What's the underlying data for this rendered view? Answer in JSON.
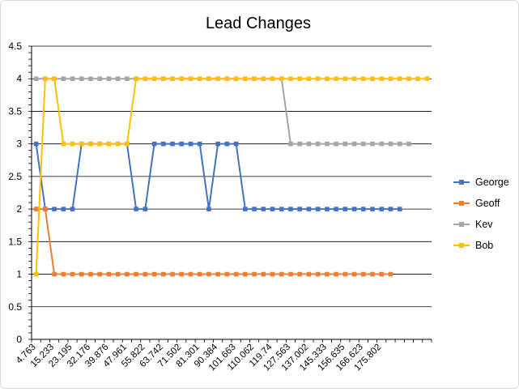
{
  "chart_data": {
    "type": "line",
    "title": "Lead Changes",
    "xlabel": "",
    "ylabel": "",
    "ylim": [
      0,
      4.5
    ],
    "ystep": 0.5,
    "y_tick_labels": [
      "0",
      "0.5",
      "1",
      "1.5",
      "2",
      "2.5",
      "3",
      "3.5",
      "4",
      "4.5"
    ],
    "x_tick_labels": [
      "4.763",
      "15.233",
      "23.195",
      "32.176",
      "39.876",
      "47.961",
      "55.822",
      "63.742",
      "71.502",
      "81.301",
      "90.384",
      "101.663",
      "110.062",
      "119.74",
      "127.563",
      "137.002",
      "145.333",
      "156.635",
      "166.623",
      "175.802"
    ],
    "x_label_every": 2,
    "num_categories": 44,
    "grid": true,
    "legend_position": "right",
    "series": [
      {
        "name": "George",
        "color": "#4472c4",
        "values": [
          3,
          2,
          2,
          2,
          2,
          3,
          3,
          3,
          3,
          3,
          3,
          2,
          2,
          3,
          3,
          3,
          3,
          3,
          3,
          2,
          3,
          3,
          3,
          2,
          2,
          2,
          2,
          2,
          2,
          2,
          2,
          2,
          2,
          2,
          2,
          2,
          2,
          2,
          2,
          2,
          2
        ]
      },
      {
        "name": "Geoff",
        "color": "#ed7d31",
        "values": [
          2,
          2,
          1,
          1,
          1,
          1,
          1,
          1,
          1,
          1,
          1,
          1,
          1,
          1,
          1,
          1,
          1,
          1,
          1,
          1,
          1,
          1,
          1,
          1,
          1,
          1,
          1,
          1,
          1,
          1,
          1,
          1,
          1,
          1,
          1,
          1,
          1,
          1,
          1,
          1
        ]
      },
      {
        "name": "Kev",
        "color": "#a5a5a5",
        "values": [
          4,
          4,
          4,
          4,
          4,
          4,
          4,
          4,
          4,
          4,
          4,
          4,
          4,
          4,
          4,
          4,
          4,
          4,
          4,
          4,
          4,
          4,
          4,
          4,
          4,
          4,
          4,
          4,
          3,
          3,
          3,
          3,
          3,
          3,
          3,
          3,
          3,
          3,
          3,
          3,
          3,
          3
        ]
      },
      {
        "name": "Bob",
        "color": "#ffc000",
        "values": [
          1,
          4,
          4,
          3,
          3,
          3,
          3,
          3,
          3,
          3,
          3,
          4,
          4,
          4,
          4,
          4,
          4,
          4,
          4,
          4,
          4,
          4,
          4,
          4,
          4,
          4,
          4,
          4,
          4,
          4,
          4,
          4,
          4,
          4,
          4,
          4,
          4,
          4,
          4,
          4,
          4,
          4,
          4,
          4
        ]
      }
    ]
  }
}
